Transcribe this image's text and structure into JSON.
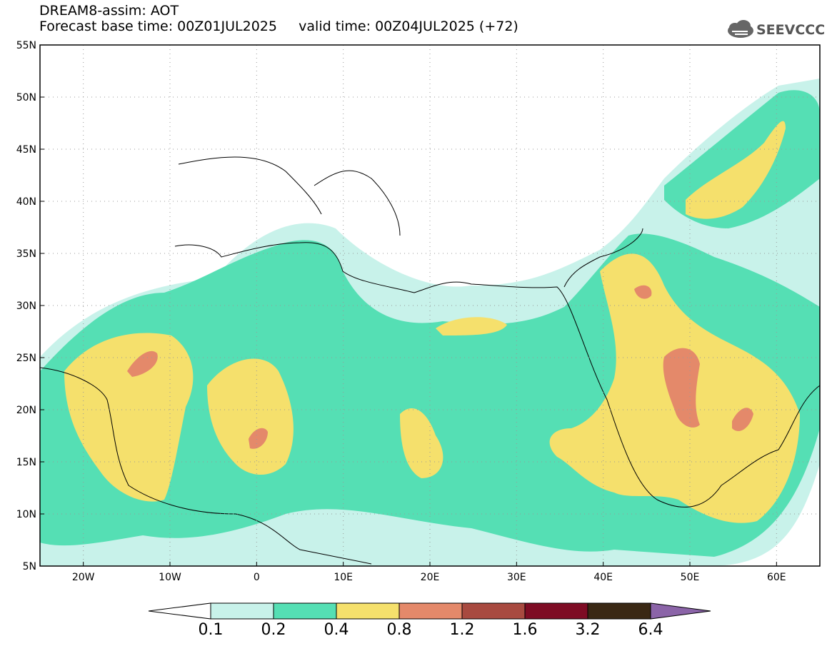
{
  "title": {
    "line1": "DREAM8-assim: AOT",
    "line2": "Forecast base time: 00Z01JUL2025     valid time: 00Z04JUL2025 (+72)"
  },
  "logo": {
    "text": "SEEVCCC"
  },
  "axes": {
    "lat_labels": [
      "55N",
      "50N",
      "45N",
      "40N",
      "35N",
      "30N",
      "25N",
      "20N",
      "15N",
      "10N",
      "5N"
    ],
    "lat_values": [
      55,
      50,
      45,
      40,
      35,
      30,
      25,
      20,
      15,
      10,
      5
    ],
    "lon_labels": [
      "20W",
      "10W",
      "0",
      "10E",
      "20E",
      "30E",
      "40E",
      "50E",
      "60E"
    ],
    "lon_values": [
      -20,
      -10,
      0,
      10,
      20,
      30,
      40,
      50,
      60
    ],
    "lon_range": [
      -25,
      65
    ],
    "lat_range": [
      5,
      55
    ]
  },
  "colorbar": {
    "labels": [
      "0.1",
      "0.2",
      "0.4",
      "0.8",
      "1.2",
      "1.6",
      "3.2",
      "6.4"
    ],
    "colors": [
      "#ffffff",
      "#c8f2ea",
      "#55dfb4",
      "#f5e06c",
      "#e4896a",
      "#a84a40",
      "#7e0c24",
      "#3a2814",
      "#8b64a8"
    ]
  },
  "colors": {
    "aot_01_02": "#c8f2ea",
    "aot_02_04": "#55dfb4",
    "aot_04_08": "#f5e06c",
    "aot_08_12": "#e4896a",
    "background": "#ffffff"
  }
}
